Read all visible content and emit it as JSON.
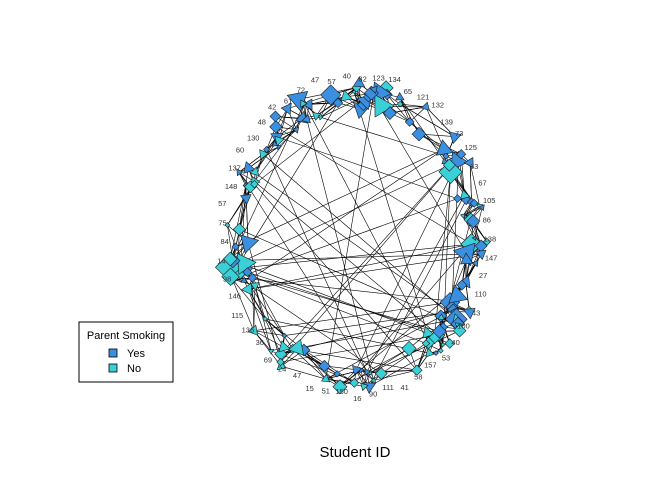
{
  "plot": {
    "xlabel": "Student ID"
  },
  "legend": {
    "title": "Parent Smoking",
    "items": [
      {
        "label": "Yes",
        "color": "#3a8fe0"
      },
      {
        "label": "No",
        "color": "#39d0d8"
      }
    ]
  },
  "colors": {
    "yes": "#3a8fe0",
    "no": "#39d0d8",
    "edge": "#000000",
    "node_border": "#1a1a1a"
  },
  "visible_labels": [
    "82",
    "123",
    "134",
    "65",
    "121",
    "132",
    "139",
    "73",
    "125",
    "33",
    "67",
    "105",
    "86",
    "138",
    "147",
    "27",
    "110",
    "43",
    "100",
    "40",
    "53",
    "157",
    "58",
    "41",
    "111",
    "90",
    "16",
    "150",
    "51",
    "15",
    "47",
    "24",
    "69",
    "36",
    "136",
    "115",
    "146",
    "98",
    "14",
    "84",
    "75",
    "57",
    "148",
    "137",
    "60",
    "130",
    "48",
    "42",
    "61",
    "72",
    "47",
    "57",
    "40"
  ]
}
